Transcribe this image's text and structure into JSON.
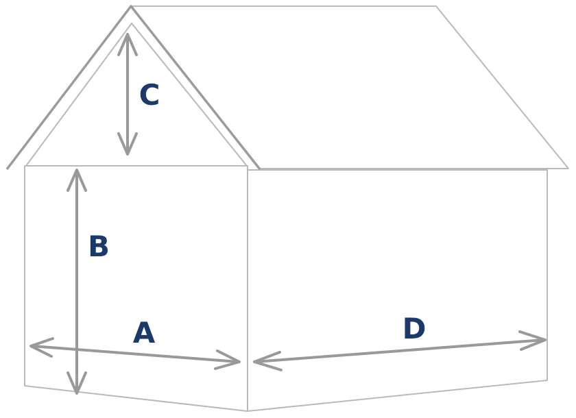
{
  "labels": {
    "a": "A",
    "b": "B",
    "c": "C",
    "d": "D"
  },
  "colors": {
    "label": "#1b3a6b",
    "arrow": "#999999",
    "outline": "#b9b9b9"
  }
}
